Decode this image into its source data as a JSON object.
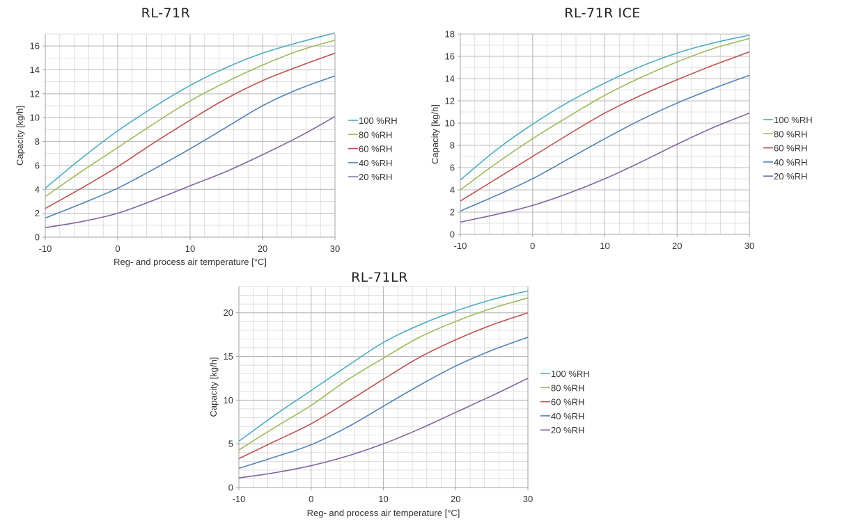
{
  "colors": {
    "rh100": "#4bacc6",
    "rh80": "#9bbb59",
    "rh60": "#c0504d",
    "rh40": "#4f81bd",
    "rh20": "#8064a2",
    "grid": "#d6d6d6",
    "axis": "#a0a0a0"
  },
  "chart_data": [
    {
      "type": "line",
      "title": "RL-71R",
      "xlabel": "Reg- and process air temperature [°C]",
      "ylabel": "Capacity [kg/h]",
      "xlim": [
        -10,
        30
      ],
      "ylim": [
        0,
        17
      ],
      "xticks": [
        -10,
        0,
        10,
        20,
        30
      ],
      "yticks": [
        0,
        2,
        4,
        6,
        8,
        10,
        12,
        14,
        16
      ],
      "x": [
        -10,
        -5,
        0,
        5,
        10,
        15,
        20,
        25,
        30
      ],
      "series": [
        {
          "name": "100 %RH",
          "color": "#4bacc6",
          "values": [
            4.1,
            6.6,
            8.9,
            10.9,
            12.7,
            14.2,
            15.4,
            16.3,
            17.1
          ]
        },
        {
          "name": "80 %RH",
          "color": "#9bbb59",
          "values": [
            3.4,
            5.5,
            7.5,
            9.5,
            11.4,
            13.0,
            14.4,
            15.6,
            16.5
          ]
        },
        {
          "name": "60 %RH",
          "color": "#c0504d",
          "values": [
            2.4,
            4.1,
            5.9,
            7.9,
            9.8,
            11.6,
            13.1,
            14.3,
            15.4
          ]
        },
        {
          "name": "40 %RH",
          "color": "#4f81bd",
          "values": [
            1.6,
            2.8,
            4.1,
            5.7,
            7.4,
            9.2,
            11.0,
            12.4,
            13.5
          ]
        },
        {
          "name": "20 %RH",
          "color": "#8064a2",
          "values": [
            0.8,
            1.3,
            2.0,
            3.1,
            4.3,
            5.5,
            6.9,
            8.4,
            10.1
          ]
        }
      ]
    },
    {
      "type": "line",
      "title": "RL-71R ICE",
      "xlabel": "",
      "ylabel": "Capacity [kg/h]",
      "xlim": [
        -10,
        30
      ],
      "ylim": [
        0,
        18
      ],
      "xticks": [
        -10,
        0,
        10,
        20,
        30
      ],
      "yticks": [
        0,
        2,
        4,
        6,
        8,
        10,
        12,
        14,
        16,
        18
      ],
      "x": [
        -10,
        -5,
        0,
        5,
        10,
        15,
        20,
        25,
        30
      ],
      "series": [
        {
          "name": "100 %RH",
          "color": "#4bacc6",
          "values": [
            4.9,
            7.6,
            9.9,
            11.9,
            13.6,
            15.1,
            16.3,
            17.2,
            17.9
          ]
        },
        {
          "name": "80 %RH",
          "color": "#9bbb59",
          "values": [
            4.0,
            6.4,
            8.6,
            10.6,
            12.5,
            14.1,
            15.5,
            16.7,
            17.6
          ]
        },
        {
          "name": "60 %RH",
          "color": "#c0504d",
          "values": [
            3.0,
            5.0,
            7.0,
            9.0,
            10.9,
            12.5,
            13.9,
            15.2,
            16.4
          ]
        },
        {
          "name": "40 %RH",
          "color": "#4f81bd",
          "values": [
            2.1,
            3.5,
            5.0,
            6.8,
            8.6,
            10.3,
            11.8,
            13.1,
            14.3
          ]
        },
        {
          "name": "20 %RH",
          "color": "#8064a2",
          "values": [
            1.1,
            1.8,
            2.6,
            3.7,
            5.0,
            6.5,
            8.1,
            9.6,
            10.9
          ]
        }
      ]
    },
    {
      "type": "line",
      "title": "RL-71LR",
      "xlabel": "Reg- and process air temperature [°C]",
      "ylabel": "Capacity [kg/h]",
      "xlim": [
        -10,
        30
      ],
      "ylim": [
        0,
        23
      ],
      "xticks": [
        -10,
        0,
        10,
        20,
        30
      ],
      "yticks": [
        0,
        5,
        10,
        15,
        20
      ],
      "x": [
        -10,
        -5,
        0,
        5,
        10,
        15,
        20,
        25,
        30
      ],
      "series": [
        {
          "name": "100 %RH",
          "color": "#4bacc6",
          "values": [
            5.3,
            8.3,
            11.1,
            13.9,
            16.6,
            18.6,
            20.2,
            21.5,
            22.5
          ]
        },
        {
          "name": "80 %RH",
          "color": "#9bbb59",
          "values": [
            4.3,
            6.9,
            9.4,
            12.3,
            14.8,
            17.2,
            19.0,
            20.5,
            21.7
          ]
        },
        {
          "name": "60 %RH",
          "color": "#c0504d",
          "values": [
            3.3,
            5.3,
            7.3,
            9.8,
            12.4,
            14.9,
            16.9,
            18.6,
            20.0
          ]
        },
        {
          "name": "40 %RH",
          "color": "#4f81bd",
          "values": [
            2.2,
            3.5,
            4.9,
            6.9,
            9.3,
            11.7,
            13.9,
            15.7,
            17.2
          ]
        },
        {
          "name": "20 %RH",
          "color": "#8064a2",
          "values": [
            1.1,
            1.7,
            2.5,
            3.6,
            5.0,
            6.7,
            8.6,
            10.5,
            12.5
          ]
        }
      ]
    }
  ]
}
